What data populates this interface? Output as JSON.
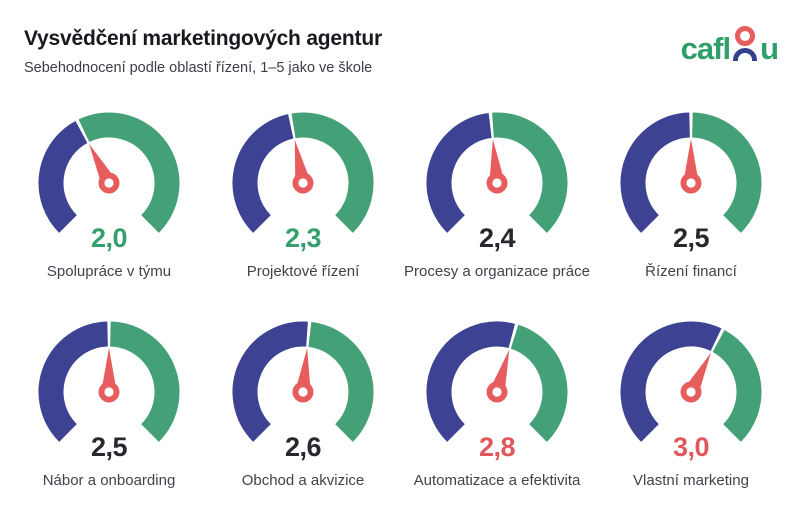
{
  "header": {
    "title": "Vysvědčení marketingových agentur",
    "subtitle": "Sebehodnocení podle oblastí řízení, 1–5 jako ve škole",
    "logo": {
      "text_before": "cafl",
      "text_after": "u",
      "icon": "person"
    }
  },
  "colors": {
    "arc_blue": "#3d4392",
    "arc_green": "#44a077",
    "needle_coral": "#e75d5e",
    "value_green": "#35a06e",
    "value_dark": "#26282d",
    "value_coral": "#e0585c"
  },
  "chart_data": {
    "type": "gauge-grid",
    "title": "Vysvědčení marketingových agentur",
    "subtitle": "Sebehodnocení podle oblastí řízení, 1–5 jako ve škole",
    "scale": {
      "min": 1,
      "max": 5,
      "note": "1–5 jako ve škole (školní známky)"
    },
    "gauge_geometry": {
      "start_angle_deg": 225,
      "sweep_deg": 270,
      "fill_fraction": "value/5"
    },
    "gauges": [
      {
        "label": "Spolupráce v týmu",
        "value": 2.0,
        "value_display": "2,0",
        "value_color": "value_green"
      },
      {
        "label": "Projektové řízení",
        "value": 2.3,
        "value_display": "2,3",
        "value_color": "value_green"
      },
      {
        "label": "Procesy a organizace práce",
        "value": 2.4,
        "value_display": "2,4",
        "value_color": "value_dark"
      },
      {
        "label": "Řízení financí",
        "value": 2.5,
        "value_display": "2,5",
        "value_color": "value_dark"
      },
      {
        "label": "Nábor a onboarding",
        "value": 2.5,
        "value_display": "2,5",
        "value_color": "value_dark"
      },
      {
        "label": "Obchod a akvizice",
        "value": 2.6,
        "value_display": "2,6",
        "value_color": "value_dark"
      },
      {
        "label": "Automatizace a efektivita",
        "value": 2.8,
        "value_display": "2,8",
        "value_color": "value_coral"
      },
      {
        "label": "Vlastní marketing",
        "value": 3.0,
        "value_display": "3,0",
        "value_color": "value_coral"
      }
    ]
  }
}
